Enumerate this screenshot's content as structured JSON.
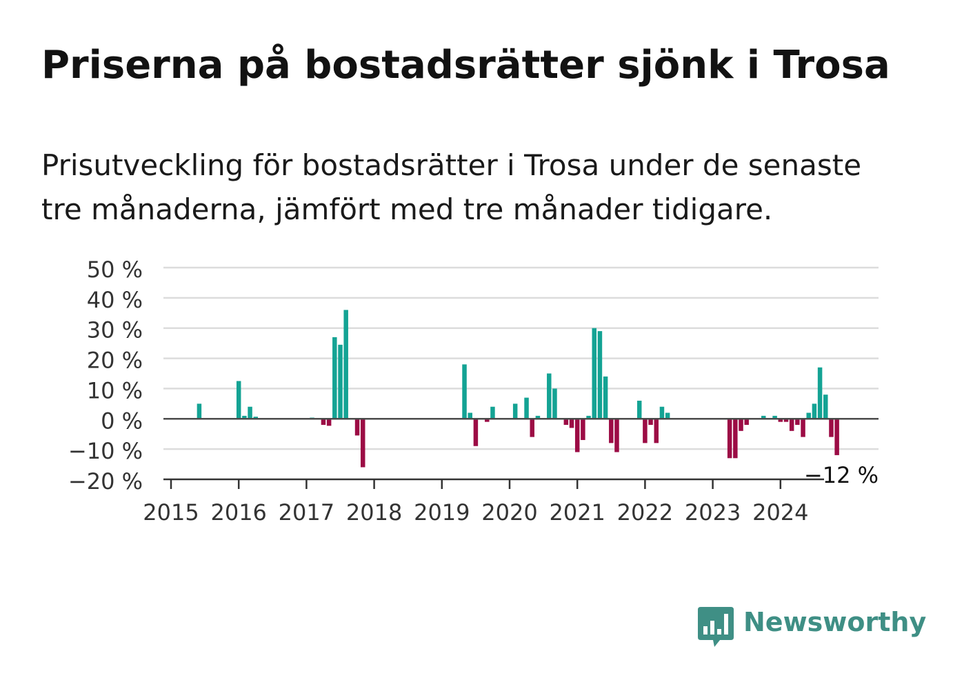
{
  "header": {
    "title": "Priserna på bostadsrätter sjönk i Trosa",
    "subtitle": "Prisutveckling för bostadsrätter i Trosa under de senaste tre månaderna, jämfört med tre månader tidigare."
  },
  "brand": {
    "name": "Newsworthy",
    "color": "#3f8f85",
    "icon": "bar-chart-speech-bubble-icon"
  },
  "colors": {
    "positive": "#14a394",
    "negative": "#9c0c45",
    "grid": "#dcdcdc",
    "axis": "#333333"
  },
  "chart_data": {
    "type": "bar",
    "title": "",
    "xlabel": "",
    "ylabel": "",
    "ylim": [
      -20,
      50
    ],
    "yticks": [
      50,
      40,
      30,
      20,
      10,
      0,
      -10,
      -20
    ],
    "ytick_labels": [
      "50 %",
      "40 %",
      "30 %",
      "20 %",
      "10 %",
      "0 %",
      "−10 %",
      "−20 %"
    ],
    "xlim": [
      "2015-01",
      "2025-06"
    ],
    "xticks": [
      "2015",
      "2016",
      "2017",
      "2018",
      "2019",
      "2020",
      "2021",
      "2022",
      "2023",
      "2024"
    ],
    "grid": true,
    "last_value_label": "−12 %",
    "series": [
      {
        "points": [
          [
            "2015-06",
            5
          ],
          [
            "2016-01",
            12.5
          ],
          [
            "2016-02",
            1
          ],
          [
            "2016-03",
            4
          ],
          [
            "2016-04",
            0.7
          ],
          [
            "2017-02",
            0.4
          ],
          [
            "2017-04",
            -2
          ],
          [
            "2017-05",
            -2.3
          ],
          [
            "2017-06",
            27
          ],
          [
            "2017-07",
            24.5
          ],
          [
            "2017-08",
            36
          ],
          [
            "2017-10",
            -5.5
          ],
          [
            "2017-11",
            -16
          ],
          [
            "2019-05",
            18
          ],
          [
            "2019-06",
            2
          ],
          [
            "2019-07",
            -9
          ],
          [
            "2019-09",
            -1
          ],
          [
            "2019-10",
            4
          ],
          [
            "2020-02",
            5
          ],
          [
            "2020-04",
            7
          ],
          [
            "2020-05",
            -6
          ],
          [
            "2020-06",
            1
          ],
          [
            "2020-08",
            15
          ],
          [
            "2020-09",
            10
          ],
          [
            "2020-11",
            -2
          ],
          [
            "2020-12",
            -3
          ],
          [
            "2021-01",
            -11
          ],
          [
            "2021-02",
            -7
          ],
          [
            "2021-03",
            1
          ],
          [
            "2021-04",
            30
          ],
          [
            "2021-05",
            29
          ],
          [
            "2021-06",
            14
          ],
          [
            "2021-07",
            -8
          ],
          [
            "2021-08",
            -11
          ],
          [
            "2021-12",
            6
          ],
          [
            "2022-01",
            -8
          ],
          [
            "2022-02",
            -2
          ],
          [
            "2022-03",
            -8
          ],
          [
            "2022-04",
            4
          ],
          [
            "2022-05",
            2
          ],
          [
            "2023-04",
            -13
          ],
          [
            "2023-05",
            -13
          ],
          [
            "2023-06",
            -4
          ],
          [
            "2023-07",
            -2
          ],
          [
            "2023-10",
            1
          ],
          [
            "2023-12",
            1
          ],
          [
            "2024-01",
            -1
          ],
          [
            "2024-02",
            -1
          ],
          [
            "2024-03",
            -4
          ],
          [
            "2024-04",
            -2
          ],
          [
            "2024-05",
            -6
          ],
          [
            "2024-06",
            2
          ],
          [
            "2024-07",
            5
          ],
          [
            "2024-08",
            17
          ],
          [
            "2024-09",
            8
          ],
          [
            "2024-10",
            -6
          ],
          [
            "2024-11",
            -12
          ]
        ]
      }
    ]
  }
}
